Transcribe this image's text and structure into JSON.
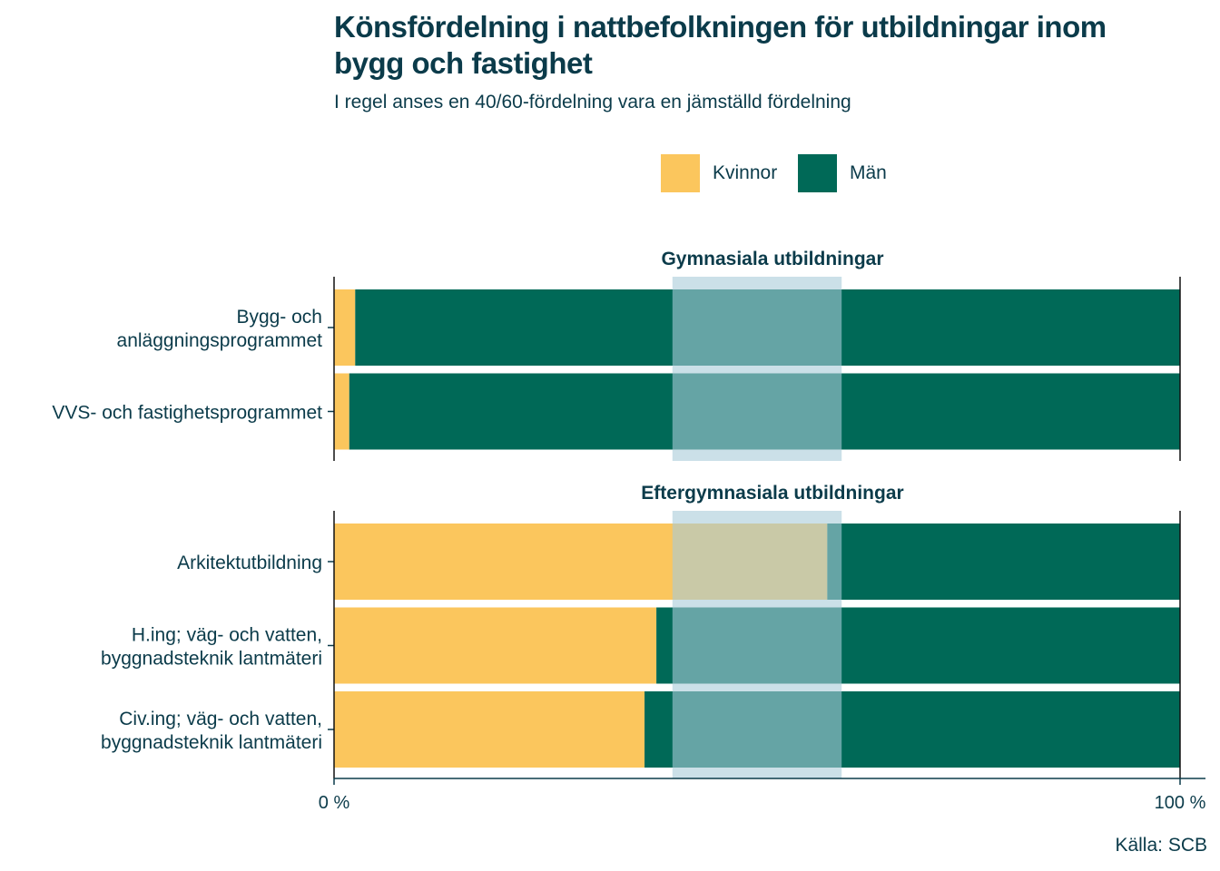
{
  "title": "Könsfördelning i nattbefolkningen för utbildningar inom bygg och fastighet",
  "subtitle": "I regel anses en 40/60-fördelning vara en jämställd fördelning",
  "source": "Källa: SCB",
  "colors": {
    "kvinnor": "#fbc65d",
    "man": "#006957",
    "band": "#a9cbd9",
    "text": "#0b3b4a",
    "axis": "#0b3b4a"
  },
  "chart_data": {
    "type": "bar",
    "orientation": "horizontal",
    "stacked": true,
    "series": [
      {
        "name": "Kvinnor",
        "color": "#fbc65d"
      },
      {
        "name": "Män",
        "color": "#006957"
      }
    ],
    "equality_band": [
      40,
      60
    ],
    "xlim": [
      0,
      100
    ],
    "x_tick_labels": [
      "0 %",
      "100 %"
    ],
    "legend_position": "top",
    "panels": [
      {
        "title": "Gymnasiala utbildningar",
        "categories": [
          "Bygg- och\nanläggningsprogrammet",
          "VVS- och fastighetsprogrammet"
        ],
        "kvinnor": [
          2.5,
          1.8
        ],
        "man": [
          97.5,
          98.2
        ]
      },
      {
        "title": "Eftergymnasiala utbildningar",
        "categories": [
          "Arkitektutbildning",
          "H.ing; väg- och vatten,\nbyggnadsteknik lantmäteri",
          "Civ.ing; väg- och vatten,\nbyggnadsteknik lantmäteri"
        ],
        "kvinnor": [
          58.3,
          38.1,
          36.7
        ],
        "man": [
          41.7,
          61.9,
          63.3
        ]
      }
    ]
  }
}
